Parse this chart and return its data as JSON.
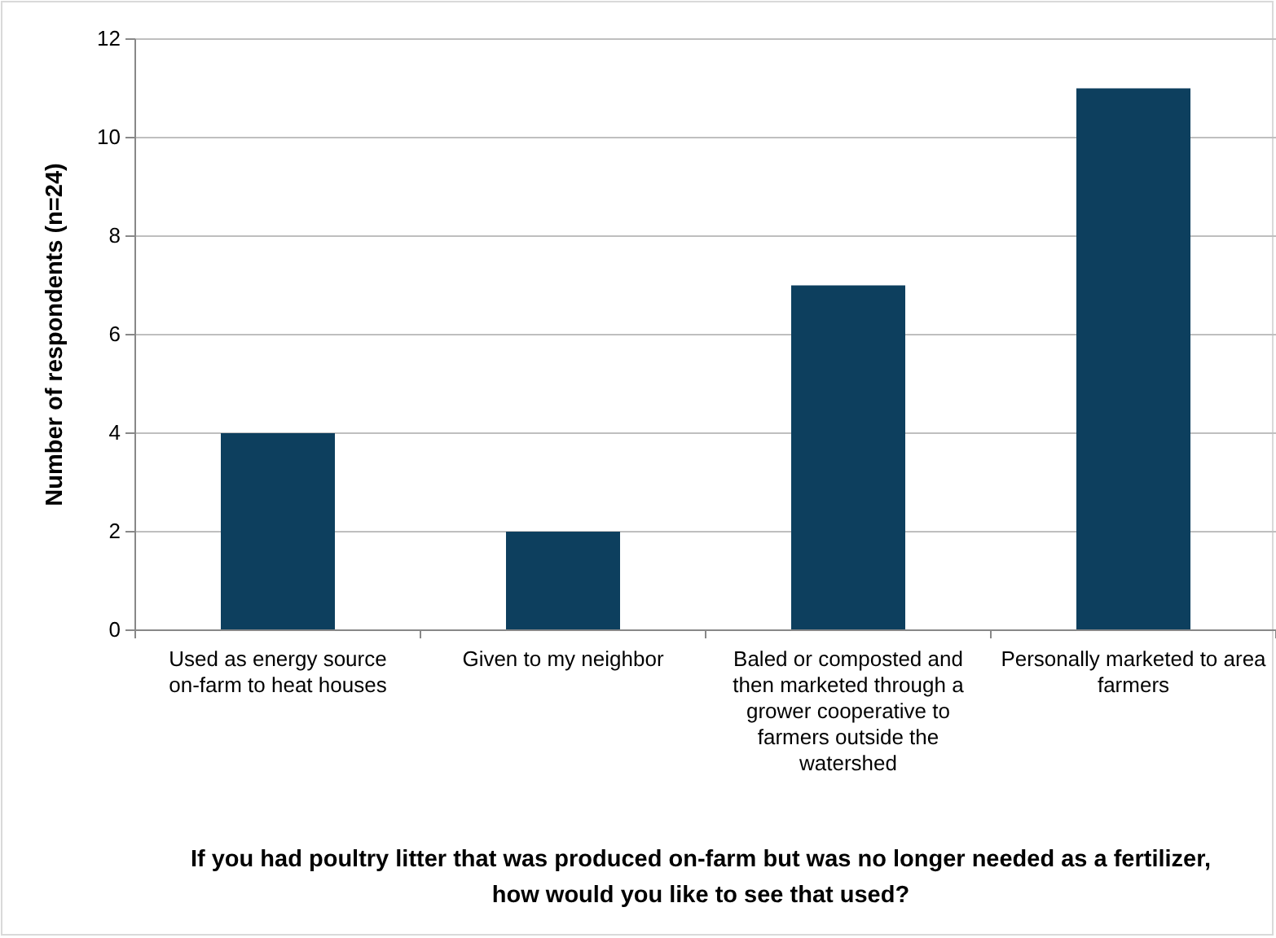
{
  "chart_data": {
    "type": "bar",
    "categories": [
      "Used as energy source on-farm to heat houses",
      "Given to my neighbor",
      "Baled or composted and then marketed through a grower cooperative to farmers outside the watershed",
      "Personally marketed to area farmers"
    ],
    "values": [
      4,
      2,
      7,
      11
    ],
    "color": "#0d3f5e",
    "ylim": [
      0,
      12
    ],
    "yticks": [
      0,
      2,
      4,
      6,
      8,
      10,
      12
    ],
    "grid": "y",
    "ylabel": "Number of respondents (n=24)",
    "xlabel": "If you had poultry litter that was produced on-farm but was no longer needed as a fertilizer, how would you like to see that used?"
  }
}
